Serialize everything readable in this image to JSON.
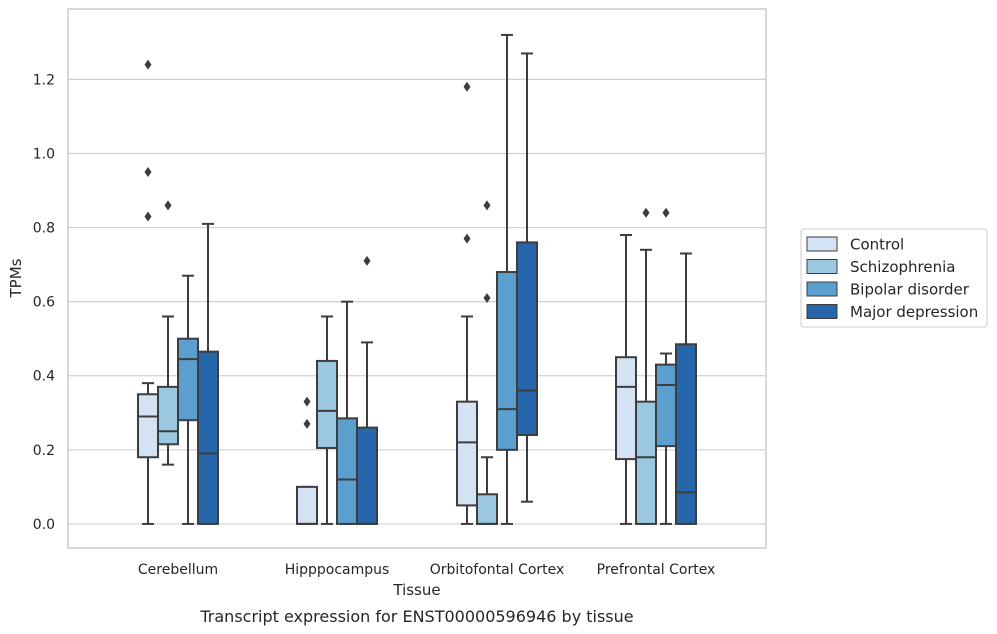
{
  "caption": "Transcript expression for ENST00000596946 by tissue",
  "chart_data": {
    "type": "box",
    "xlabel": "Tissue",
    "ylabel": "TPMs",
    "ylim": [
      -0.065,
      1.39
    ],
    "yticks": [
      "0.0",
      "0.2",
      "0.4",
      "0.6",
      "0.8",
      "1.0",
      "1.2"
    ],
    "grid": "horizontal",
    "legend_position": "right",
    "categories": [
      "Cerebellum",
      "Hipppocampus",
      "Orbitofontal Cortex",
      "Prefrontal Cortex"
    ],
    "series": [
      {
        "name": "Control",
        "color": "#d3e3f3",
        "boxes": [
          {
            "whislo": 0.0,
            "q1": 0.18,
            "med": 0.29,
            "q3": 0.35,
            "whishi": 0.38,
            "fliers": [
              0.83,
              0.95,
              1.24
            ]
          },
          {
            "whislo": 0.0,
            "q1": 0.0,
            "med": 0.0,
            "q3": 0.1,
            "whishi": 0.1,
            "fliers": [
              0.27,
              0.33
            ]
          },
          {
            "whislo": 0.0,
            "q1": 0.05,
            "med": 0.22,
            "q3": 0.33,
            "whishi": 0.56,
            "fliers": [
              0.77,
              1.18
            ]
          },
          {
            "whislo": 0.0,
            "q1": 0.175,
            "med": 0.37,
            "q3": 0.45,
            "whishi": 0.78,
            "fliers": []
          }
        ]
      },
      {
        "name": "Schizophrenia",
        "color": "#9ac8e0",
        "boxes": [
          {
            "whislo": 0.16,
            "q1": 0.215,
            "med": 0.25,
            "q3": 0.37,
            "whishi": 0.56,
            "fliers": [
              0.86
            ]
          },
          {
            "whislo": 0.0,
            "q1": 0.205,
            "med": 0.305,
            "q3": 0.44,
            "whishi": 0.56,
            "fliers": []
          },
          {
            "whislo": 0.0,
            "q1": 0.0,
            "med": 0.0,
            "q3": 0.08,
            "whishi": 0.18,
            "fliers": [
              0.61,
              0.86
            ]
          },
          {
            "whislo": 0.0,
            "q1": 0.0,
            "med": 0.18,
            "q3": 0.33,
            "whishi": 0.74,
            "fliers": [
              0.84
            ]
          }
        ]
      },
      {
        "name": "Bipolar disorder",
        "color": "#5a9fcd",
        "boxes": [
          {
            "whislo": 0.0,
            "q1": 0.28,
            "med": 0.445,
            "q3": 0.5,
            "whishi": 0.67,
            "fliers": []
          },
          {
            "whislo": 0.0,
            "q1": 0.0,
            "med": 0.12,
            "q3": 0.285,
            "whishi": 0.6,
            "fliers": []
          },
          {
            "whislo": 0.0,
            "q1": 0.2,
            "med": 0.31,
            "q3": 0.68,
            "whishi": 1.32,
            "fliers": []
          },
          {
            "whislo": 0.0,
            "q1": 0.21,
            "med": 0.375,
            "q3": 0.43,
            "whishi": 0.46,
            "fliers": [
              0.84
            ]
          }
        ]
      },
      {
        "name": "Major depression",
        "color": "#2666aa",
        "boxes": [
          {
            "whislo": 0.0,
            "q1": 0.0,
            "med": 0.19,
            "q3": 0.465,
            "whishi": 0.81,
            "fliers": []
          },
          {
            "whislo": 0.0,
            "q1": 0.0,
            "med": 0.0,
            "q3": 0.26,
            "whishi": 0.49,
            "fliers": [
              0.71
            ]
          },
          {
            "whislo": 0.06,
            "q1": 0.24,
            "med": 0.36,
            "q3": 0.76,
            "whishi": 1.27,
            "fliers": []
          },
          {
            "whislo": 0.0,
            "q1": 0.0,
            "med": 0.085,
            "q3": 0.485,
            "whishi": 0.73,
            "fliers": []
          }
        ]
      }
    ]
  }
}
